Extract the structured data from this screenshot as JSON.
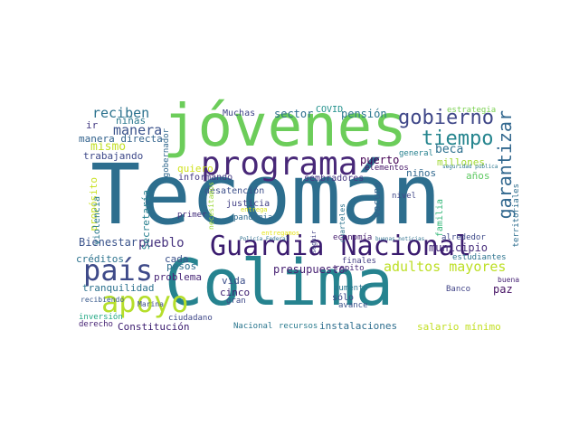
{
  "word_cloud": {
    "words": [
      {
        "text": "Tecomán",
        "color": "#2d6e8e"
      },
      {
        "text": "Colima",
        "color": "#26838f"
      },
      {
        "text": "jóvenes",
        "color": "#6ccd5a"
      },
      {
        "text": "Guardia Nacional",
        "color": "#3b1c6f"
      },
      {
        "text": "programa",
        "color": "#482878"
      },
      {
        "text": "país",
        "color": "#3e4a89"
      },
      {
        "text": "apoyo",
        "color": "#b5de2b"
      },
      {
        "text": "garantizar",
        "color": "#31678e"
      },
      {
        "text": "gobierno",
        "color": "#3f4788"
      },
      {
        "text": "tiempo",
        "color": "#25858e"
      },
      {
        "text": "adultos mayores",
        "color": "#bddf26"
      },
      {
        "text": "Bienestar",
        "color": "#3a538b"
      },
      {
        "text": "pueblo",
        "color": "#46327e"
      },
      {
        "text": "presupuesto",
        "color": "#482173"
      },
      {
        "text": "reciben",
        "color": "#2c728e"
      },
      {
        "text": "manera",
        "color": "#3b528b"
      },
      {
        "text": "mismo",
        "color": "#c2df23"
      },
      {
        "text": "niñas",
        "color": "#2a788e"
      },
      {
        "text": "ir",
        "color": "#443a83"
      },
      {
        "text": "manera directa",
        "color": "#33638d"
      },
      {
        "text": "trabajando",
        "color": "#3e4989"
      },
      {
        "text": "propósito",
        "color": "#c8e020"
      },
      {
        "text": "violencia",
        "color": "#29798e"
      },
      {
        "text": "Muchas",
        "color": "#404588"
      },
      {
        "text": "sector",
        "color": "#2e6f8e"
      },
      {
        "text": "pensión",
        "color": "#2a778e"
      },
      {
        "text": "COVID",
        "color": "#21918c"
      },
      {
        "text": "estrategia",
        "color": "#7ad151"
      },
      {
        "text": "gobernador",
        "color": "#31688e"
      },
      {
        "text": "quiero",
        "color": "#d0e11c"
      },
      {
        "text": "informando",
        "color": "#443983"
      },
      {
        "text": "desatención",
        "color": "#3c4f8a"
      },
      {
        "text": "sembradores",
        "color": "#453781"
      },
      {
        "text": "puerto",
        "color": "#440154"
      },
      {
        "text": "beca",
        "color": "#2d708e"
      },
      {
        "text": "niños",
        "color": "#31688e"
      },
      {
        "text": "millones",
        "color": "#a2da37"
      },
      {
        "text": "años",
        "color": "#5ec962"
      },
      {
        "text": "elementos",
        "color": "#48186a"
      },
      {
        "text": "seguridad pública",
        "color": "#2a778e"
      },
      {
        "text": "territoriales",
        "color": "#2e6e8e"
      },
      {
        "text": "general",
        "color": "#26818e"
      },
      {
        "text": "vacuna",
        "color": "#33628d"
      },
      {
        "text": "nivel",
        "color": "#3f4788"
      },
      {
        "text": "familia",
        "color": "#35b779"
      },
      {
        "text": "justicia",
        "color": "#424086"
      },
      {
        "text": "primer",
        "color": "#46307e"
      },
      {
        "text": "pandemia",
        "color": "#2f6b8e"
      },
      {
        "text": "entrega",
        "color": "#d8e219"
      },
      {
        "text": "necesitamos",
        "color": "#9dd93b"
      },
      {
        "text": "Secretaría",
        "color": "#277f8e"
      },
      {
        "text": "cada",
        "color": "#3b528b"
      },
      {
        "text": "créditos",
        "color": "#2c738e"
      },
      {
        "text": "pesos",
        "color": "#2e6e8e"
      },
      {
        "text": "problema",
        "color": "#482677"
      },
      {
        "text": "tranquilidad",
        "color": "#2c728e"
      },
      {
        "text": "cinco",
        "color": "#3b1c6f"
      },
      {
        "text": "vida",
        "color": "#3c4f8a"
      },
      {
        "text": "paz",
        "color": "#471365"
      },
      {
        "text": "municipio",
        "color": "#472d7b"
      },
      {
        "text": "alrededor",
        "color": "#3e4a89"
      },
      {
        "text": "estudiantes",
        "color": "#2c738e"
      },
      {
        "text": "buena",
        "color": "#482576"
      },
      {
        "text": "Banco",
        "color": "#414487"
      },
      {
        "text": "aumento",
        "color": "#2a768e"
      },
      {
        "text": "sólo",
        "color": "#3e4989"
      },
      {
        "text": "avance",
        "color": "#3b528b"
      },
      {
        "text": "repito",
        "color": "#482878"
      },
      {
        "text": "finales",
        "color": "#433d84"
      },
      {
        "text": "cuarteles",
        "color": "#2c738e"
      },
      {
        "text": "economía",
        "color": "#481f70"
      },
      {
        "text": "buenas noticias",
        "color": "#2d708e"
      },
      {
        "text": "Policía Federal",
        "color": "#2e6f8e"
      },
      {
        "text": "entregamos",
        "color": "#e5e419"
      },
      {
        "text": "seguir",
        "color": "#424086"
      },
      {
        "text": "recibiendo",
        "color": "#38598c"
      },
      {
        "text": "Marina",
        "color": "#3d4d8a"
      },
      {
        "text": "inversión",
        "color": "#22a884"
      },
      {
        "text": "derecho",
        "color": "#482475"
      },
      {
        "text": "ciudadano",
        "color": "#3f4889"
      },
      {
        "text": "Constitución",
        "color": "#3b1c6f"
      },
      {
        "text": "Nacional",
        "color": "#2a768e"
      },
      {
        "text": "recursos",
        "color": "#297b8e"
      },
      {
        "text": "instalaciones",
        "color": "#2e6e8e"
      },
      {
        "text": "salario mínimo",
        "color": "#c2df23"
      },
      {
        "text": "gran",
        "color": "#3e4a89"
      }
    ]
  }
}
